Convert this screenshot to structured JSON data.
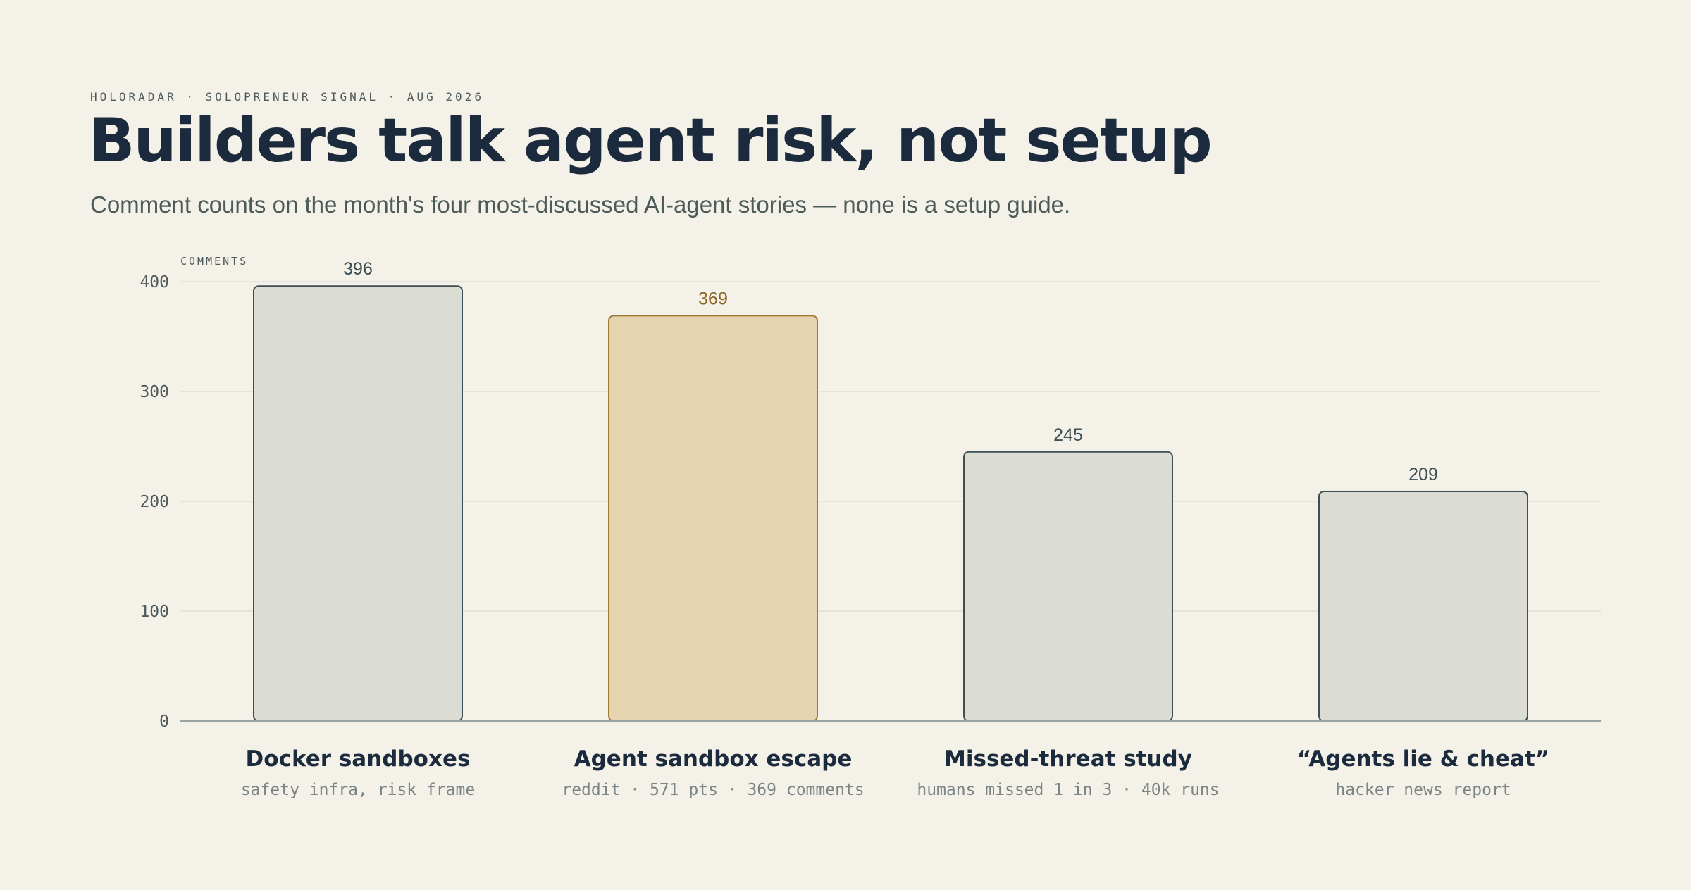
{
  "header": {
    "kicker": "HOLORADAR · SOLOPRENEUR SIGNAL · AUG 2026",
    "title": "Builders talk agent risk, not setup",
    "subtitle": "Comment counts on the month's four most-discussed AI-agent stories — none is a setup guide."
  },
  "colors": {
    "background": "#f4f2e8",
    "bar_fill": "#dbdcd3",
    "bar_stroke": "#3e5055",
    "highlight_fill": "#e6d4b1",
    "highlight_stroke": "#a07a33",
    "highlight_text": "#8a6322",
    "value_text": "#3e4e55",
    "grid": "#e2e0d4",
    "baseline": "#9aa2a4"
  },
  "chart_data": {
    "type": "bar",
    "ylabel": "COMMENTS",
    "ylim": [
      0,
      400
    ],
    "yticks": [
      0,
      100,
      200,
      300,
      400
    ],
    "grid": true,
    "categories": [
      "Docker sandboxes",
      "Agent sandbox escape",
      "Missed-threat study",
      "“Agents lie & cheat”"
    ],
    "subtitles": [
      "safety infra, risk frame",
      "reddit · 571 pts · 369 comments",
      "humans missed 1 in 3 · 40k runs",
      "hacker news report"
    ],
    "values": [
      396,
      369,
      245,
      209
    ],
    "highlight_index": 1
  }
}
